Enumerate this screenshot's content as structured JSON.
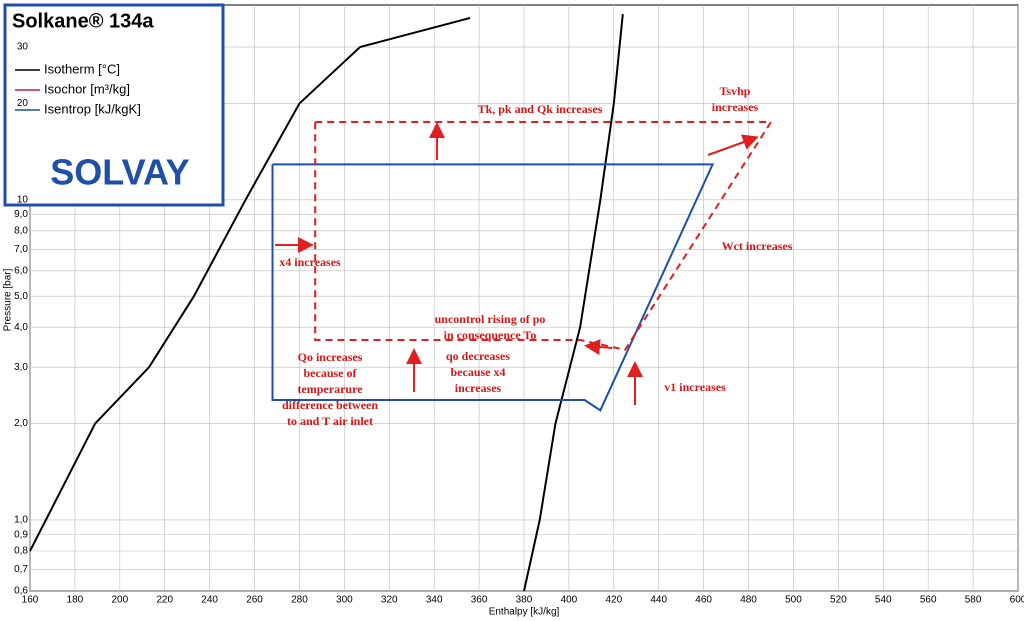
{
  "chart_data": {
    "type": "line",
    "x_label": "Enthalpy [kJ/kg]",
    "y_label": "Pressure [bar]",
    "xlim": [
      160,
      600
    ],
    "xticks": [
      160,
      180,
      200,
      220,
      240,
      260,
      280,
      300,
      320,
      340,
      360,
      380,
      400,
      420,
      440,
      460,
      480,
      500,
      520,
      540,
      560,
      580,
      600
    ],
    "ylim": [
      0.6,
      40.6
    ],
    "y_log": true,
    "grid": true,
    "yticks": [
      {
        "value": 0.6,
        "label": "0,6"
      },
      {
        "value": 0.7,
        "label": "0,7"
      },
      {
        "value": 0.8,
        "label": "0,8"
      },
      {
        "value": 0.9,
        "label": "0,9"
      },
      {
        "value": 1,
        "label": "1,0"
      },
      {
        "value": 2,
        "label": "2,0"
      },
      {
        "value": 3,
        "label": "3,0"
      },
      {
        "value": 4,
        "label": "4,0"
      },
      {
        "value": 5,
        "label": "5,0"
      },
      {
        "value": 6,
        "label": "6,0"
      },
      {
        "value": 7,
        "label": "7,0"
      },
      {
        "value": 8,
        "label": "8,0"
      },
      {
        "value": 9,
        "label": "9,0"
      },
      10,
      20,
      30
    ],
    "legend": {
      "title": "Solkane® 134a",
      "brand": "SOLVAY",
      "items": [
        {
          "name": "Isotherm [°C]",
          "color": "#000000"
        },
        {
          "name": "Isochor [m³/kg]",
          "color": "#c0185a"
        },
        {
          "name": "Isentrop [kJ/kgK]",
          "color": "#1f4fa8"
        }
      ]
    },
    "series": [
      {
        "color": "#000000",
        "style": "solid",
        "x": [
          160,
          189,
          213,
          233,
          256,
          280,
          307,
          356
        ],
        "values": [
          0.8,
          2,
          3,
          5,
          10,
          20,
          30,
          37
        ]
      },
      {
        "color": "#000000",
        "style": "solid",
        "x": [
          380,
          387,
          394,
          405,
          414,
          420,
          424
        ],
        "values": [
          0.6,
          1,
          2,
          4,
          10,
          20,
          38
        ]
      },
      {
        "color": "#1f4fa8",
        "style": "solid",
        "x": [
          268,
          464,
          414,
          407,
          268,
          268
        ],
        "values": [
          12.9,
          12.9,
          2.2,
          2.37,
          2.37,
          12.9
        ]
      },
      {
        "color": "#e02020",
        "style": "dashed",
        "x": [
          287,
          490,
          425,
          405,
          287,
          287
        ],
        "values": [
          17.5,
          17.5,
          3.4,
          3.65,
          3.65,
          17.5
        ]
      }
    ],
    "annotations": [
      [
        "Tk, pk and Qk increases"
      ],
      [
        "Tsvhp",
        "increases"
      ],
      [
        "x4 increases"
      ],
      [
        "Wct increases"
      ],
      [
        "uncontrol rising of po",
        "in consequence To"
      ],
      [
        "Qo increases",
        "because of",
        "temperarure",
        "difference between",
        "to and T air inlet"
      ],
      [
        "qo decreases",
        "because x4",
        "increases"
      ],
      [
        "v1 increases"
      ]
    ]
  }
}
